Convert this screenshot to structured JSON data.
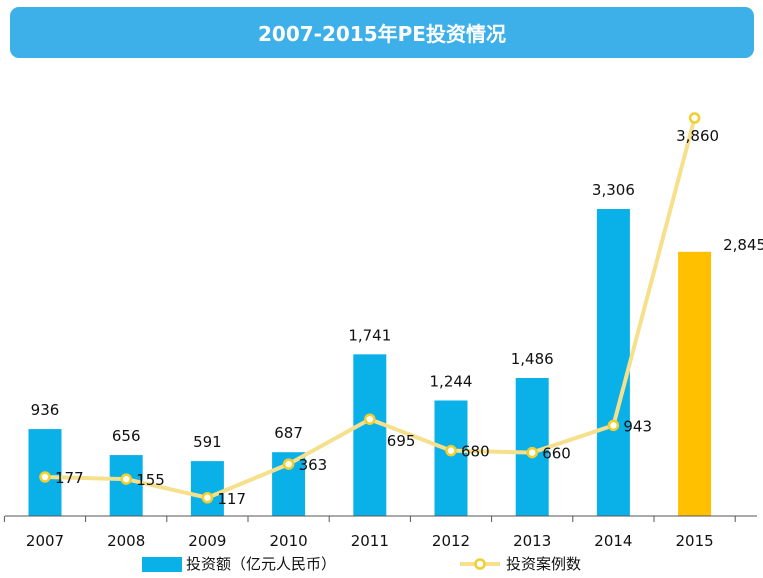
{
  "chart_data": {
    "type": "bar",
    "title": "2007-2015年PE投资情况",
    "categories": [
      "2007",
      "2008",
      "2009",
      "2010",
      "2011",
      "2012",
      "2013",
      "2014",
      "2015"
    ],
    "series": [
      {
        "name": "投资额（亿元人民币）",
        "kind": "bar",
        "values": [
          936,
          656,
          591,
          687,
          1741,
          1244,
          1486,
          3306,
          2845
        ],
        "value_labels": [
          "936",
          "656",
          "591",
          "687",
          "1,741",
          "1,244",
          "1,486",
          "3,306",
          "2,845"
        ],
        "color": "#0ab0e8",
        "highlight_color": "#ffc000",
        "highlight_category": "2015"
      },
      {
        "name": "投资案例数",
        "kind": "line",
        "values": [
          177,
          155,
          117,
          363,
          695,
          680,
          660,
          943,
          3860
        ],
        "value_labels": [
          "177",
          "155",
          "117",
          "363",
          "695",
          "680",
          "660",
          "943",
          "3,860"
        ],
        "color": "#f6e08c",
        "marker_color": "#f2cf2e"
      }
    ],
    "xlabel": "",
    "ylabel": "",
    "grid": false,
    "legend_position": "bottom"
  }
}
